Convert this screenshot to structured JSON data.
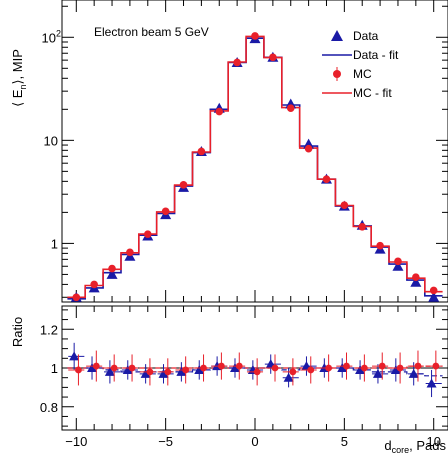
{
  "chart_data": [
    {
      "type": "line",
      "ylabel_main": "⟨ E",
      "ylabel_sub": "n",
      "ylabel_tail": "⟩, MIP",
      "annotation": "Electron beam 5 GeV",
      "log_y": true,
      "ylim": [
        0.27,
        230
      ],
      "xlim": [
        -10.8,
        10.8
      ],
      "x_ticks": [
        -10,
        -5,
        0,
        5,
        10
      ],
      "x_tick_labels": [
        "−10",
        "−5",
        "0",
        "5",
        "10"
      ],
      "y_ticks": [
        1,
        10,
        100
      ],
      "y_tick_labels": [
        "1",
        "10",
        "10²"
      ],
      "y_tick_main": [
        "1",
        "10",
        "10"
      ],
      "y_tick_sup": [
        "",
        "",
        "2"
      ],
      "legend": {
        "position": "top-right",
        "entries": [
          {
            "key": "data",
            "label": "Data"
          },
          {
            "key": "data_fit",
            "label": "Data - fit"
          },
          {
            "key": "mc",
            "label": "MC"
          },
          {
            "key": "mc_fit",
            "label": "MC - fit"
          }
        ]
      },
      "x": [
        -10,
        -9,
        -8,
        -7,
        -6,
        -5,
        -4,
        -3,
        -2,
        -1,
        0,
        1,
        2,
        3,
        4,
        5,
        6,
        7,
        8,
        9,
        10
      ],
      "series": [
        {
          "key": "data",
          "name": "Data",
          "color": "#1a1aa6",
          "marker": "triangle",
          "values": [
            0.3,
            0.37,
            0.5,
            0.75,
            1.18,
            1.9,
            3.5,
            7.8,
            20.5,
            57.0,
            97.0,
            64.0,
            22.5,
            9.2,
            4.2,
            2.3,
            1.5,
            0.88,
            0.6,
            0.42,
            0.3
          ]
        },
        {
          "key": "mc",
          "name": "MC",
          "color": "#e8202a",
          "marker": "circle",
          "values": [
            0.3,
            0.4,
            0.57,
            0.82,
            1.23,
            2.05,
            3.7,
            7.8,
            19.0,
            57.0,
            103.0,
            64.0,
            20.5,
            8.3,
            4.2,
            2.35,
            1.45,
            0.95,
            0.67,
            0.47,
            0.35
          ]
        },
        {
          "key": "data_fit",
          "name": "Data - fit",
          "color": "#1a1aa6",
          "style": "step",
          "values": [
            0.29,
            0.37,
            0.52,
            0.78,
            1.2,
            1.95,
            3.6,
            7.6,
            20.0,
            57.0,
            98.0,
            64.0,
            22.0,
            8.8,
            4.2,
            2.3,
            1.48,
            0.92,
            0.63,
            0.44,
            0.31
          ]
        },
        {
          "key": "mc_fit",
          "name": "MC - fit",
          "color": "#e8202a",
          "style": "step",
          "values": [
            0.3,
            0.39,
            0.56,
            0.81,
            1.23,
            2.02,
            3.68,
            7.7,
            19.3,
            57.5,
            102.0,
            63.5,
            20.8,
            8.4,
            4.2,
            2.33,
            1.46,
            0.94,
            0.66,
            0.46,
            0.34
          ]
        }
      ]
    },
    {
      "type": "scatter",
      "ylabel": "Ratio",
      "xlabel_main": "d",
      "xlabel_sub": "core",
      "xlabel_tail": ", Pads",
      "ylim": [
        0.68,
        1.32
      ],
      "xlim": [
        -10.8,
        10.8
      ],
      "y_ticks": [
        0.8,
        1.0,
        1.2
      ],
      "y_tick_labels": [
        "0.8",
        "1",
        "1.2"
      ],
      "reference_line": 1.0,
      "x": [
        -10,
        -9,
        -8,
        -7,
        -6,
        -5,
        -4,
        -3,
        -2,
        -1,
        0,
        1,
        2,
        3,
        4,
        5,
        6,
        7,
        8,
        9,
        10
      ],
      "series": [
        {
          "key": "data",
          "name": "Data",
          "color": "#1a1aa6",
          "marker": "triangle",
          "values": [
            1.06,
            1.0,
            0.98,
            0.99,
            0.97,
            0.97,
            0.98,
            0.99,
            1.01,
            1.0,
            0.99,
            1.02,
            0.95,
            1.01,
            1.0,
            1.0,
            0.99,
            0.97,
            0.99,
            0.97,
            0.92
          ],
          "errors": [
            0.07,
            0.06,
            0.06,
            0.05,
            0.05,
            0.05,
            0.05,
            0.05,
            0.05,
            0.05,
            0.05,
            0.05,
            0.05,
            0.05,
            0.05,
            0.05,
            0.05,
            0.05,
            0.06,
            0.06,
            0.07
          ]
        },
        {
          "key": "mc",
          "name": "MC",
          "color": "#e8202a",
          "marker": "circle",
          "values": [
            0.99,
            1.01,
            1.0,
            1.0,
            0.98,
            0.98,
            0.99,
            1.0,
            1.01,
            1.01,
            0.98,
            1.0,
            0.98,
            0.99,
            1.0,
            1.01,
            1.0,
            1.01,
            1.0,
            1.01,
            1.01
          ],
          "errors": [
            0.08,
            0.08,
            0.07,
            0.07,
            0.07,
            0.07,
            0.07,
            0.07,
            0.07,
            0.07,
            0.07,
            0.07,
            0.07,
            0.07,
            0.07,
            0.07,
            0.07,
            0.07,
            0.08,
            0.08,
            0.08
          ]
        },
        {
          "key": "data_fit",
          "name": "Data - fit",
          "color": "#1a1aa6",
          "style": "dashed-step",
          "values": [
            1.0,
            1.0,
            0.99,
            0.98,
            0.98,
            0.98,
            0.98,
            0.99,
            1.0,
            1.0,
            1.0,
            1.0,
            0.99,
            1.0,
            1.0,
            1.0,
            0.99,
            0.98,
            0.98,
            0.97,
            0.96
          ]
        },
        {
          "key": "mc_fit",
          "name": "MC - fit",
          "color": "#e8202a",
          "style": "dashed-step",
          "values": [
            1.0,
            1.0,
            1.0,
            1.0,
            1.0,
            1.0,
            1.0,
            1.0,
            1.0,
            1.0,
            1.0,
            1.0,
            1.0,
            1.0,
            1.0,
            1.0,
            1.0,
            1.0,
            1.0,
            1.01,
            1.01
          ]
        }
      ]
    }
  ]
}
